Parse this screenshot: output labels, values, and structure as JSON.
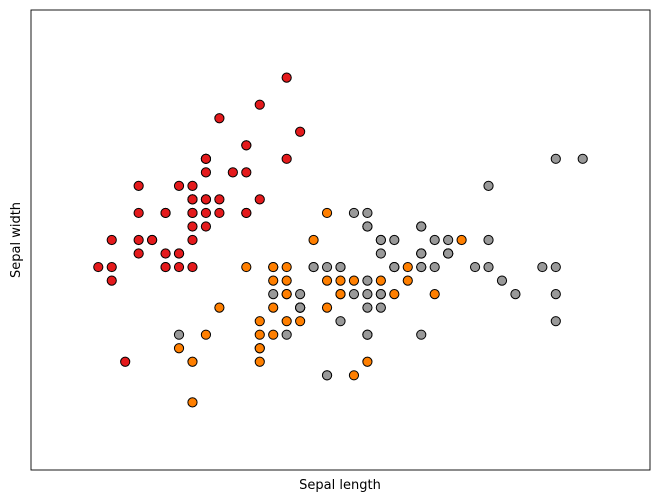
{
  "chart_data": {
    "type": "scatter",
    "title": "",
    "xlabel": "Sepal length",
    "ylabel": "Sepal width",
    "xlim": [
      3.8,
      8.4
    ],
    "ylim": [
      1.5,
      4.9
    ],
    "ticks": "none",
    "grid": false,
    "legend": "none",
    "series": [
      {
        "color": "#e41a1c",
        "x": [
          5.1,
          4.9,
          4.7,
          4.6,
          5.0,
          5.4,
          4.6,
          5.0,
          4.4,
          4.9,
          5.4,
          4.8,
          4.8,
          4.3,
          5.8,
          5.7,
          5.4,
          5.1,
          5.7,
          5.1,
          5.4,
          5.1,
          4.6,
          5.1,
          4.8,
          5.0,
          5.0,
          5.2,
          5.2,
          4.7,
          4.8,
          5.4,
          5.2,
          5.5,
          4.9,
          5.0,
          5.5,
          4.9,
          4.4,
          5.1,
          5.0,
          4.5,
          4.4,
          5.0,
          5.1,
          4.8,
          5.1,
          4.6,
          5.3,
          5.0
        ],
        "y": [
          3.5,
          3.0,
          3.2,
          3.1,
          3.6,
          3.9,
          3.4,
          3.4,
          2.9,
          3.1,
          3.7,
          3.4,
          3.0,
          3.0,
          4.0,
          4.4,
          3.9,
          3.5,
          3.8,
          3.8,
          3.4,
          3.7,
          3.6,
          3.3,
          3.4,
          3.0,
          3.4,
          3.5,
          3.4,
          3.2,
          3.1,
          3.4,
          4.1,
          4.2,
          3.1,
          3.2,
          3.5,
          3.6,
          3.0,
          3.4,
          3.5,
          2.3,
          3.2,
          3.5,
          3.8,
          3.0,
          3.8,
          3.2,
          3.7,
          3.3
        ]
      },
      {
        "color": "#ff7f00",
        "x": [
          7.0,
          6.4,
          6.9,
          5.5,
          6.5,
          5.7,
          6.3,
          4.9,
          6.6,
          5.2,
          5.0,
          5.9,
          6.0,
          6.1,
          5.6,
          6.7,
          5.6,
          5.8,
          6.2,
          5.6,
          5.9,
          6.1,
          6.3,
          6.1,
          6.4,
          6.6,
          6.8,
          6.7,
          6.0,
          5.7,
          5.5,
          5.5,
          5.8,
          6.0,
          5.4,
          6.0,
          6.7,
          6.3,
          5.6,
          5.5,
          5.5,
          6.1,
          5.8,
          5.0,
          5.6,
          5.7,
          5.7,
          6.2,
          5.1,
          5.7
        ],
        "y": [
          3.2,
          3.2,
          3.1,
          2.3,
          2.8,
          2.8,
          3.3,
          2.4,
          2.9,
          2.7,
          2.0,
          3.0,
          2.2,
          2.9,
          2.9,
          3.1,
          3.0,
          2.7,
          2.2,
          2.5,
          3.2,
          2.8,
          2.5,
          2.8,
          2.9,
          3.0,
          2.8,
          3.0,
          2.9,
          2.6,
          2.4,
          2.4,
          2.7,
          2.7,
          3.0,
          3.4,
          3.1,
          2.3,
          3.0,
          2.5,
          2.6,
          3.0,
          2.6,
          2.3,
          2.7,
          3.0,
          2.9,
          2.9,
          2.5,
          2.8
        ]
      },
      {
        "color": "#999999",
        "x": [
          6.3,
          5.8,
          7.1,
          6.3,
          6.5,
          7.6,
          4.9,
          7.3,
          6.7,
          7.2,
          6.5,
          6.4,
          6.8,
          5.7,
          5.8,
          6.4,
          6.5,
          7.7,
          7.7,
          6.0,
          6.9,
          5.6,
          7.7,
          6.3,
          6.7,
          7.2,
          6.2,
          6.1,
          6.4,
          7.2,
          7.4,
          7.9,
          6.4,
          6.3,
          6.1,
          7.7,
          6.3,
          6.4,
          6.0,
          6.9,
          6.7,
          6.9,
          5.8,
          6.8,
          6.7,
          6.7,
          6.3,
          6.5,
          6.2,
          5.9
        ],
        "y": [
          3.3,
          2.7,
          3.0,
          2.9,
          3.0,
          3.0,
          2.5,
          2.9,
          2.5,
          3.6,
          3.2,
          2.7,
          3.0,
          2.5,
          2.8,
          3.2,
          3.0,
          3.8,
          2.6,
          2.2,
          3.2,
          2.8,
          2.8,
          2.7,
          3.3,
          3.2,
          2.8,
          3.0,
          2.8,
          3.0,
          2.8,
          3.8,
          2.8,
          2.8,
          2.6,
          3.0,
          3.4,
          3.1,
          3.0,
          3.1,
          3.1,
          3.1,
          2.7,
          3.2,
          3.3,
          3.0,
          2.5,
          3.0,
          3.4,
          3.0
        ]
      }
    ]
  }
}
